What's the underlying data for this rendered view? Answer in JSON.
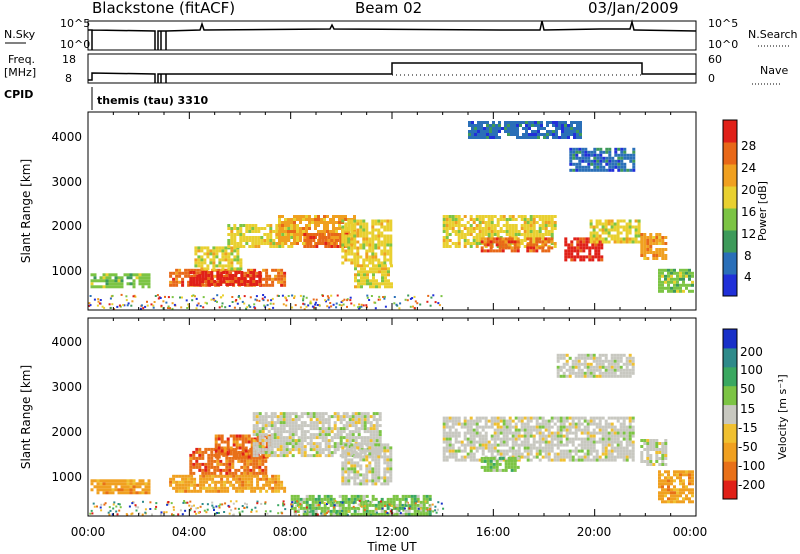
{
  "figure": {
    "station": "Blackstone (fitACF)",
    "beam": "Beam 02",
    "date": "03/Jan/2009"
  },
  "strip1": {
    "left_label": "N.Sky",
    "right_label": "N.Search",
    "left_ticks": [
      "10^5",
      "10^0"
    ],
    "right_ticks": [
      "10^5",
      "10^0"
    ]
  },
  "strip2": {
    "left_label_line1": "Freq.",
    "left_label_line2": "[MHz]",
    "right_label": "Nave",
    "left_ticks": [
      "18",
      "8"
    ],
    "right_ticks": [
      "60",
      "0"
    ]
  },
  "cpid": {
    "label": "CPID",
    "value": "themis (tau) 3310"
  },
  "x_axis": {
    "label": "Time UT",
    "ticks": [
      "00:00",
      "04:00",
      "08:00",
      "12:00",
      "16:00",
      "20:00",
      "00:00"
    ]
  },
  "power_panel": {
    "ylabel": "Slant Range [km]",
    "yticks": [
      "4000",
      "3000",
      "2000",
      "1000"
    ],
    "colorbar_label": "Power [dB]",
    "colorbar_ticks": [
      "28",
      "24",
      "20",
      "16",
      "12",
      "8",
      "4"
    ],
    "colors": [
      "#2030d8",
      "#2a6fb8",
      "#3d9a5a",
      "#7cc444",
      "#e9d030",
      "#f0a020",
      "#e86818",
      "#e02018"
    ]
  },
  "velocity_panel": {
    "ylabel": "Slant Range [km]",
    "yticks": [
      "4000",
      "3000",
      "2000",
      "1000"
    ],
    "colorbar_label": "Velocity [m s⁻¹]",
    "colorbar_ticks": [
      "200",
      "100",
      "50",
      "15",
      "-15",
      "-50",
      "-100",
      "-200"
    ],
    "colors": [
      "#1830c8",
      "#2e8a8a",
      "#3aa860",
      "#7cc444",
      "#c8c8c0",
      "#f0c030",
      "#f0a020",
      "#e87018",
      "#e02018"
    ]
  },
  "chart_data": {
    "type": "heatmap",
    "x_unit": "UT hours",
    "xlim": [
      0,
      24
    ],
    "ylim": [
      180,
      4600
    ],
    "power_regions": [
      {
        "t0": 0.1,
        "t1": 2.4,
        "r0": 700,
        "r1": 1000,
        "level": 3
      },
      {
        "t0": 3.2,
        "t1": 7.8,
        "r0": 700,
        "r1": 1100,
        "level": 6
      },
      {
        "t0": 4.0,
        "t1": 6.8,
        "r0": 750,
        "r1": 1050,
        "level": 7
      },
      {
        "t0": 4.2,
        "t1": 6.0,
        "r0": 1100,
        "r1": 1600,
        "level": 4
      },
      {
        "t0": 5.5,
        "t1": 8.0,
        "r0": 1600,
        "r1": 2100,
        "level": 4
      },
      {
        "t0": 7.5,
        "t1": 10.5,
        "r0": 1650,
        "r1": 2300,
        "level": 5
      },
      {
        "t0": 8.5,
        "t1": 10.2,
        "r0": 1600,
        "r1": 1900,
        "level": 6
      },
      {
        "t0": 10.0,
        "t1": 12.0,
        "r0": 1200,
        "r1": 2200,
        "level": 4
      },
      {
        "t0": 10.5,
        "t1": 12.0,
        "r0": 700,
        "r1": 1200,
        "level": 4
      },
      {
        "t0": 14.0,
        "t1": 18.5,
        "r0": 1600,
        "r1": 2300,
        "level": 4
      },
      {
        "t0": 15.5,
        "t1": 17.0,
        "r0": 1500,
        "r1": 1800,
        "level": 6
      },
      {
        "t0": 17.3,
        "t1": 18.3,
        "r0": 1500,
        "r1": 1800,
        "level": 6
      },
      {
        "t0": 18.8,
        "t1": 20.3,
        "r0": 1300,
        "r1": 1800,
        "level": 7
      },
      {
        "t0": 19.8,
        "t1": 21.7,
        "r0": 1700,
        "r1": 2200,
        "level": 4
      },
      {
        "t0": 21.8,
        "t1": 22.8,
        "r0": 1300,
        "r1": 1900,
        "level": 5
      },
      {
        "t0": 22.5,
        "t1": 23.9,
        "r0": 600,
        "r1": 1100,
        "level": 3
      },
      {
        "t0": 19.0,
        "t1": 21.5,
        "r0": 3300,
        "r1": 3800,
        "level": 1
      },
      {
        "t0": 15.0,
        "t1": 19.5,
        "r0": 4000,
        "r1": 4400,
        "level": 1
      }
    ],
    "velocity_regions": [
      {
        "t0": 0.1,
        "t1": 2.4,
        "r0": 700,
        "r1": 1000,
        "level": 6
      },
      {
        "t0": 3.2,
        "t1": 7.8,
        "r0": 700,
        "r1": 1100,
        "level": 6
      },
      {
        "t0": 4.0,
        "t1": 7.0,
        "r0": 1100,
        "r1": 1700,
        "level": 7
      },
      {
        "t0": 5.0,
        "t1": 7.2,
        "r0": 1500,
        "r1": 2000,
        "level": 7
      },
      {
        "t0": 6.5,
        "t1": 11.5,
        "r0": 1500,
        "r1": 2500,
        "level": 4
      },
      {
        "t0": 10.0,
        "t1": 12.0,
        "r0": 900,
        "r1": 1800,
        "level": 4
      },
      {
        "t0": 8.0,
        "t1": 13.5,
        "r0": 200,
        "r1": 650,
        "level": 3
      },
      {
        "t0": 14.0,
        "t1": 21.5,
        "r0": 1400,
        "r1": 2400,
        "level": 4
      },
      {
        "t0": 15.5,
        "t1": 17.0,
        "r0": 1200,
        "r1": 1500,
        "level": 3
      },
      {
        "t0": 21.8,
        "t1": 22.8,
        "r0": 1300,
        "r1": 1900,
        "level": 4
      },
      {
        "t0": 22.5,
        "t1": 23.9,
        "r0": 500,
        "r1": 1200,
        "level": 6
      },
      {
        "t0": 18.5,
        "t1": 21.5,
        "r0": 3300,
        "r1": 3800,
        "level": 4
      }
    ]
  }
}
